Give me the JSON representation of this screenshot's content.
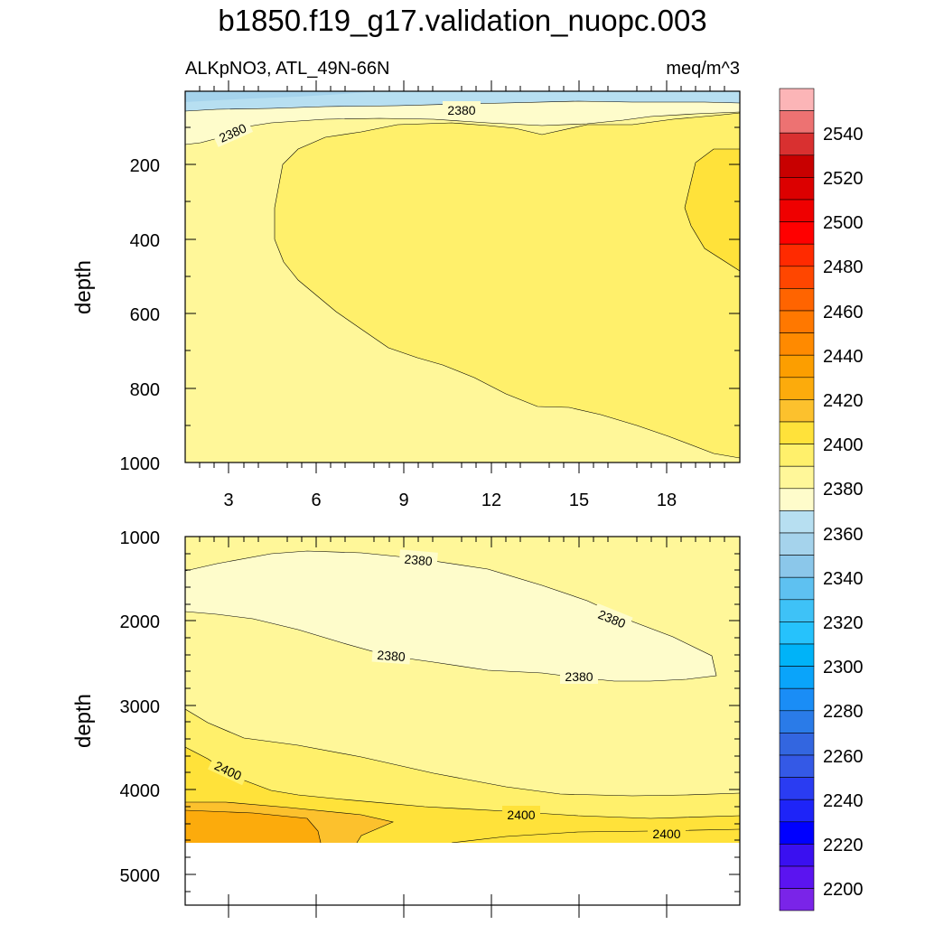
{
  "chart_data": {
    "type": "contour",
    "title": "b1850.f19_g17.validation_nuopc.003",
    "variable_label": "ALKpNO3, ATL_49N-66N",
    "units_label": "meq/m^3",
    "ylabel": "depth",
    "x_ticks": [
      "3",
      "6",
      "9",
      "12",
      "15",
      "18"
    ],
    "upper_y_ticks": [
      "200",
      "400",
      "600",
      "800",
      "1000"
    ],
    "lower_y_ticks": [
      "1000",
      "2000",
      "3000",
      "4000",
      "5000"
    ],
    "colorbar_ticks": [
      "2540",
      "2520",
      "2500",
      "2480",
      "2460",
      "2440",
      "2420",
      "2400",
      "2380",
      "2360",
      "2340",
      "2320",
      "2300",
      "2280",
      "2260",
      "2240",
      "2220",
      "2200"
    ],
    "contour_labels": {
      "u1": "2380",
      "u2": "2380",
      "l1": "2380",
      "l2": "2380",
      "l3": "2380",
      "l4": "2380",
      "l5": "2400",
      "l6": "2400",
      "l7": "2400"
    }
  }
}
